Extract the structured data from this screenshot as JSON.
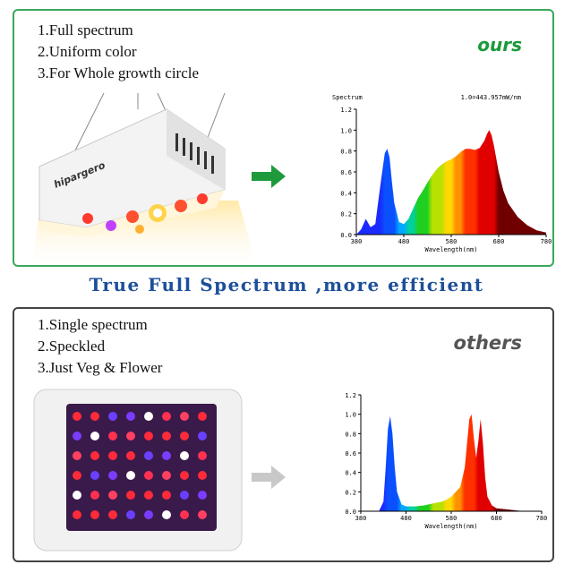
{
  "ours": {
    "features": [
      "1.Full spectrum",
      "2.Uniform color",
      "3.For Whole growth circle"
    ],
    "tag": "ours",
    "brand": "hipargero",
    "arrow_color": "#1e9a3c"
  },
  "headline": "True Full Spectrum ,more efficient",
  "others": {
    "features": [
      "1.Single spectrum",
      "2.Speckled",
      "3.Just Veg & Flower"
    ],
    "tag": "others",
    "arrow_color": "#c8c8c8"
  },
  "chart_data": [
    {
      "type": "area",
      "title": "Spectrum",
      "annotation": "1.0=443.957mW/nm",
      "xlabel": "Wavelength(nm)",
      "xlim": [
        380,
        780
      ],
      "ylim": [
        0,
        1.2
      ],
      "xticks": [
        "380",
        "480",
        "580",
        "680",
        "780"
      ],
      "yticks": [
        "0.0",
        "0.2",
        "0.4",
        "0.6",
        "0.8",
        "1.0",
        "1.2"
      ],
      "x": [
        380,
        390,
        400,
        410,
        420,
        430,
        440,
        445,
        450,
        455,
        460,
        470,
        480,
        490,
        500,
        510,
        520,
        530,
        540,
        550,
        560,
        570,
        580,
        590,
        600,
        610,
        620,
        630,
        640,
        650,
        655,
        660,
        665,
        670,
        680,
        690,
        700,
        720,
        740,
        760,
        780
      ],
      "y": [
        0.0,
        0.05,
        0.15,
        0.07,
        0.1,
        0.45,
        0.78,
        0.82,
        0.74,
        0.5,
        0.3,
        0.12,
        0.1,
        0.15,
        0.25,
        0.35,
        0.42,
        0.5,
        0.57,
        0.63,
        0.67,
        0.7,
        0.72,
        0.75,
        0.79,
        0.82,
        0.82,
        0.81,
        0.83,
        0.9,
        0.96,
        1.0,
        0.95,
        0.85,
        0.6,
        0.42,
        0.3,
        0.17,
        0.09,
        0.04,
        0.02
      ]
    },
    {
      "type": "area",
      "title": "",
      "xlabel": "Wavelength(nm)",
      "xlim": [
        380,
        780
      ],
      "ylim": [
        0,
        1.2
      ],
      "xticks": [
        "380",
        "480",
        "580",
        "680",
        "780"
      ],
      "yticks": [
        "0.0",
        "0.2",
        "0.4",
        "0.6",
        "0.8",
        "1.0",
        "1.2"
      ],
      "x": [
        380,
        420,
        430,
        435,
        440,
        445,
        450,
        455,
        460,
        470,
        480,
        500,
        520,
        540,
        560,
        570,
        580,
        590,
        600,
        610,
        620,
        625,
        630,
        635,
        640,
        645,
        650,
        655,
        660,
        670,
        680,
        700,
        740,
        780
      ],
      "y": [
        0.0,
        0.0,
        0.1,
        0.45,
        0.85,
        0.98,
        0.8,
        0.45,
        0.2,
        0.07,
        0.05,
        0.05,
        0.06,
        0.08,
        0.1,
        0.12,
        0.15,
        0.2,
        0.25,
        0.45,
        0.95,
        1.0,
        0.75,
        0.55,
        0.72,
        0.95,
        0.7,
        0.35,
        0.15,
        0.06,
        0.03,
        0.02,
        0.0,
        0.0
      ]
    }
  ]
}
